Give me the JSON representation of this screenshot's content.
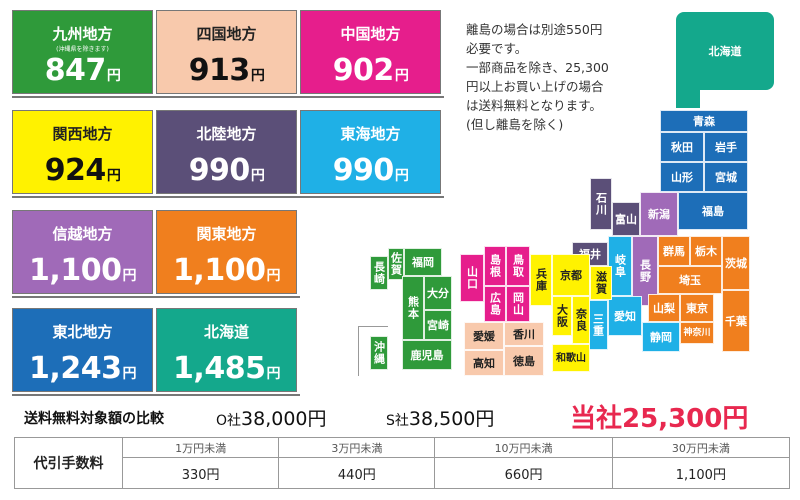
{
  "regions": [
    {
      "name": "九州地方",
      "note": "(沖縄県を除きます)",
      "price": "847",
      "yen": "円",
      "bg": "#2f9a3a",
      "name_color": "#ffffff",
      "price_color": "#ffffff"
    },
    {
      "name": "四国地方",
      "price": "913",
      "yen": "円",
      "bg": "#f8c9ac",
      "name_color": "#222222",
      "price_color": "#111111"
    },
    {
      "name": "中国地方",
      "price": "902",
      "yen": "円",
      "bg": "#e61e8c",
      "name_color": "#ffffff",
      "price_color": "#ffffff"
    },
    {
      "name": "関西地方",
      "price": "924",
      "yen": "円",
      "bg": "#fff200",
      "name_color": "#222222",
      "price_color": "#111111"
    },
    {
      "name": "北陸地方",
      "price": "990",
      "yen": "円",
      "bg": "#5b4f78",
      "name_color": "#ffffff",
      "price_color": "#ffffff"
    },
    {
      "name": "東海地方",
      "price": "990",
      "yen": "円",
      "bg": "#1fb0e6",
      "name_color": "#ffffff",
      "price_color": "#ffffff"
    },
    {
      "name": "信越地方",
      "price": "1,100",
      "yen": "円",
      "bg": "#a06ab8",
      "name_color": "#ffffff",
      "price_color": "#ffffff"
    },
    {
      "name": "関東地方",
      "price": "1,100",
      "yen": "円",
      "bg": "#f07f1e",
      "name_color": "#ffffff",
      "price_color": "#ffffff"
    },
    {
      "name": "東北地方",
      "price": "1,243",
      "yen": "円",
      "bg": "#1d6eb8",
      "name_color": "#ffffff",
      "price_color": "#ffffff"
    },
    {
      "name": "北海道",
      "price": "1,485",
      "yen": "円",
      "bg": "#14a88c",
      "name_color": "#ffffff",
      "price_color": "#ffffff"
    }
  ],
  "info": {
    "line1": "離島の場合は別途550円",
    "line2": "必要です。",
    "line3": "一部商品を除き、25,300",
    "line4": "円以上お買い上げの場合",
    "line5": "は送料無料となります。",
    "line6": "(但し離島を除く)"
  },
  "map": {
    "hokkaido": "北海道",
    "aomori": "青森",
    "akita": "秋田",
    "iwate": "岩手",
    "yamagata": "山形",
    "miyagi": "宮城",
    "fukushima": "福島",
    "niigata": "新潟",
    "toyama": "富山",
    "ishikawa": "石川",
    "fukui": "福井",
    "nagano": "長野",
    "gifu": "岐阜",
    "gunma": "群馬",
    "tochigi": "栃木",
    "ibaraki": "茨城",
    "saitama": "埼玉",
    "yamanashi": "山梨",
    "tokyo": "東京",
    "kanagawa": "神奈川",
    "chiba": "千葉",
    "shizuoka": "静岡",
    "aichi": "愛知",
    "mie": "三重",
    "shiga": "滋賀",
    "kyoto": "京都",
    "hyogo": "兵庫",
    "osaka": "大阪",
    "nara": "奈良",
    "wakayama": "和歌山",
    "tottori": "鳥取",
    "shimane": "島根",
    "okayama": "岡山",
    "hiroshima": "広島",
    "yamaguchi": "山口",
    "ehime": "愛媛",
    "kagawa": "香川",
    "kochi": "高知",
    "tokushima": "徳島",
    "fukuoka": "福岡",
    "saga": "佐賀",
    "nagasaki": "長崎",
    "oita": "大分",
    "kumamoto": "熊本",
    "miyazaki": "宮崎",
    "kagoshima": "鹿児島",
    "okinawa": "沖縄"
  },
  "compare": {
    "label": "送料無料対象額の比較",
    "o_prefix": "O社",
    "o_amount": "38,000円",
    "s_prefix": "S社",
    "s_amount": "38,500円",
    "ours_prefix": "当社",
    "ours_amount": "25,300円"
  },
  "fee_table": {
    "label": "代引手数料",
    "headers": [
      "1万円未満",
      "3万円未満",
      "10万円未満",
      "30万円未満"
    ],
    "values": [
      "330円",
      "440円",
      "660円",
      "1,100円"
    ]
  }
}
